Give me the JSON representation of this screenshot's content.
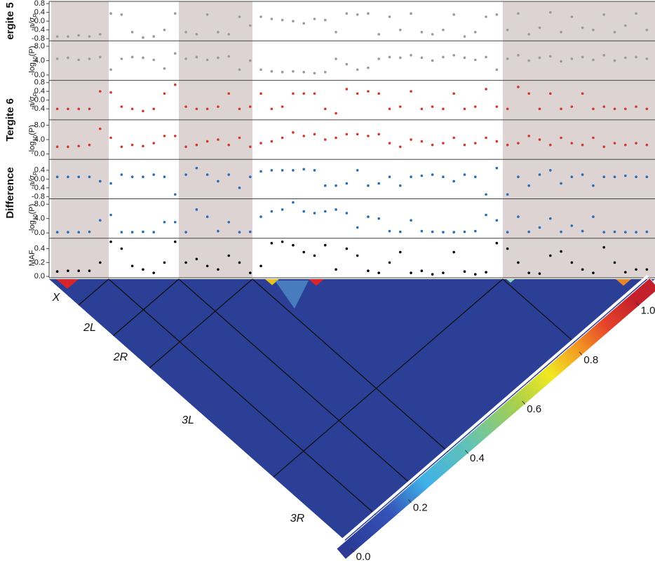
{
  "groups": [
    "ergite 5",
    "Tergite 6",
    "Difference"
  ],
  "chart_data": [
    {
      "type": "scatter",
      "ylabel": [
        "a/σ",
        "P"
      ],
      "color": "#9a9a9a",
      "ylim": [
        -0.9,
        0.9
      ],
      "yticks": [
        -0.8,
        -0.4,
        {
          "value": 0,
          "label": "0.0"
        },
        0.4,
        0.8
      ],
      "values": [
        -0.7,
        -0.7,
        -0.65,
        -0.7,
        -0.6,
        0.35,
        0.3,
        -0.5,
        -0.75,
        -0.7,
        -0.4,
        0.35,
        -0.5,
        -0.6,
        0.3,
        -0.5,
        -0.6,
        0.2,
        -0.2,
        0.2,
        0.1,
        0.05,
        0.0,
        -0.1,
        0.1,
        0.05,
        -0.5,
        0.35,
        0.3,
        0.35,
        -0.6,
        0.2,
        -0.4,
        0.35,
        -0.5,
        -0.6,
        -0.4,
        0.3,
        -0.7,
        -0.5,
        0.2,
        0.3,
        -0.4,
        0.35,
        -0.6,
        -0.3,
        0.4,
        -0.5,
        0.2,
        -0.3,
        -0.4,
        0.3,
        -0.5,
        -0.2,
        0.35,
        -0.4
      ]
    },
    {
      "type": "scatter",
      "ylabel": [
        "-log",
        "10",
        "(P)"
      ],
      "color": "#9a9a9a",
      "ylim": [
        -1.5,
        9.5
      ],
      "yticks": [
        {
          "value": 0,
          "label": "0.0"
        },
        {
          "value": 4,
          "label": "4.0"
        },
        {
          "value": 8,
          "label": "8.0"
        }
      ],
      "values": [
        4.5,
        4.8,
        4.2,
        4.5,
        5.0,
        1.5,
        4.5,
        5.0,
        4.8,
        4.2,
        1.8,
        6.0,
        4.5,
        5.0,
        4.2,
        4.8,
        5.2,
        1.5,
        4.0,
        1.5,
        1.0,
        0.8,
        1.0,
        0.8,
        0.5,
        0.8,
        4.5,
        3.0,
        1.5,
        2.0,
        4.5,
        5.0,
        4.8,
        5.5,
        4.8,
        4.0,
        5.0,
        5.5,
        4.8,
        4.2,
        5.0,
        1.5,
        4.5,
        5.5,
        4.0,
        4.8,
        5.2,
        3.8,
        4.5,
        5.0,
        4.2,
        5.5,
        4.0,
        4.8,
        5.0,
        4.5
      ]
    },
    {
      "type": "scatter",
      "ylabel": [
        "a/σ",
        "P"
      ],
      "color": "#d0392b",
      "ylim": [
        -0.9,
        0.9
      ],
      "yticks": [
        -0.4,
        {
          "value": 0,
          "label": "0.0"
        },
        0.4,
        0.8
      ],
      "values": [
        -0.4,
        -0.4,
        -0.4,
        -0.4,
        0.4,
        0.35,
        -0.3,
        -0.4,
        -0.5,
        -0.4,
        0.3,
        0.7,
        -0.3,
        -0.4,
        -0.4,
        -0.3,
        0.3,
        -0.4,
        -0.3,
        0.3,
        -0.4,
        -0.3,
        0.3,
        0.3,
        0.3,
        -0.4,
        -0.6,
        0.5,
        0.3,
        0.4,
        0.3,
        -0.4,
        -0.3,
        0.4,
        -0.4,
        -0.3,
        -0.4,
        0.3,
        -0.4,
        -0.3,
        0.5,
        -0.3,
        -0.4,
        0.6,
        0.3,
        -0.4,
        0.3,
        -0.4,
        -0.3,
        0.3,
        -0.4,
        -0.3,
        -0.4,
        -0.4,
        -0.3,
        -0.4
      ]
    },
    {
      "type": "scatter",
      "ylabel": [
        "-log",
        "10",
        "(P)"
      ],
      "color": "#d0392b",
      "ylim": [
        -1.5,
        9.5
      ],
      "yticks": [
        {
          "value": 0,
          "label": "0.0"
        },
        {
          "value": 4,
          "label": "4.0"
        },
        {
          "value": 8,
          "label": "8.0"
        }
      ],
      "values": [
        2.0,
        2.0,
        2.2,
        2.5,
        7.0,
        4.5,
        2.0,
        2.5,
        2.2,
        3.0,
        5.0,
        5.0,
        2.0,
        2.5,
        3.5,
        4.0,
        2.5,
        4.5,
        2.0,
        3.0,
        3.5,
        4.5,
        6.0,
        5.0,
        5.5,
        4.0,
        4.5,
        5.5,
        5.5,
        5.0,
        5.5,
        3.0,
        2.0,
        4.0,
        3.5,
        2.5,
        3.0,
        4.5,
        2.5,
        3.0,
        4.5,
        3.5,
        2.5,
        3.0,
        5.0,
        4.0,
        2.5,
        4.5,
        3.0,
        2.5,
        4.5,
        2.0,
        3.0,
        2.5,
        3.0,
        2.5
      ]
    },
    {
      "type": "scatter",
      "ylabel": [
        "a/σ",
        "P"
      ],
      "color": "#2a6db5",
      "ylim": [
        -0.9,
        0.9
      ],
      "yticks": [
        -0.8,
        -0.4,
        {
          "value": 0,
          "label": "0.0"
        },
        0.4
      ],
      "values": [
        0.1,
        0.1,
        0.1,
        0.1,
        -0.1,
        -0.2,
        0.2,
        0.1,
        0.1,
        0.2,
        0.1,
        -0.7,
        0.2,
        0.5,
        0.2,
        -0.1,
        0.2,
        -0.4,
        0.1,
        0.35,
        0.4,
        0.4,
        0.4,
        0.45,
        0.4,
        -0.3,
        -0.3,
        -0.2,
        0.4,
        -0.3,
        -0.2,
        0.1,
        -0.3,
        0.1,
        0.15,
        0.2,
        0.1,
        -0.1,
        0.2,
        0.1,
        -0.7,
        0.5,
        -0.7,
        0.1,
        -0.3,
        0.2,
        0.4,
        -0.2,
        0.1,
        0.2,
        -0.3,
        0.1,
        0.1,
        0.15,
        0.1,
        0.1
      ]
    },
    {
      "type": "scatter",
      "ylabel": [
        "-log",
        "10",
        "(P)"
      ],
      "color": "#2a6db5",
      "ylim": [
        -1.5,
        9.5
      ],
      "yticks": [
        {
          "value": 0,
          "label": "0.0"
        },
        {
          "value": 4,
          "label": "4.0"
        },
        {
          "value": 8,
          "label": "8.0"
        }
      ],
      "values": [
        0.2,
        0.2,
        0.2,
        0.3,
        3.5,
        5.0,
        0.2,
        0.2,
        0.3,
        0.2,
        3.0,
        3.0,
        0.2,
        6.5,
        4.5,
        0.5,
        3.0,
        0.2,
        0.3,
        4.5,
        6.0,
        6.5,
        8.5,
        6.0,
        5.5,
        6.0,
        6.5,
        5.5,
        1.5,
        4.5,
        4.0,
        0.5,
        0.3,
        3.5,
        0.5,
        0.3,
        0.2,
        0.2,
        0.3,
        0.5,
        5.0,
        3.5,
        0.2,
        4.5,
        0.3,
        1.5,
        4.0,
        0.3,
        2.0,
        0.5,
        4.5,
        0.2,
        0.3,
        0.2,
        0.2,
        0.3
      ]
    },
    {
      "type": "scatter",
      "ylabel": [
        "MAF"
      ],
      "color": "#000000",
      "ylim": [
        -0.02,
        0.55
      ],
      "yticks": [
        {
          "value": 0,
          "label": "0.0"
        },
        0.2,
        0.4
      ],
      "values": [
        0.07,
        0.08,
        0.08,
        0.08,
        0.2,
        0.5,
        0.4,
        0.15,
        0.1,
        0.05,
        0.2,
        0.5,
        0.2,
        0.25,
        0.15,
        0.1,
        0.3,
        0.2,
        0.05,
        0.15,
        0.48,
        0.5,
        0.45,
        0.35,
        0.3,
        0.45,
        0.1,
        0.4,
        0.3,
        0.08,
        0.05,
        0.2,
        0.35,
        0.05,
        0.08,
        0.03,
        0.05,
        0.35,
        0.07,
        0.03,
        0.06,
        0.48,
        0.4,
        0.2,
        0.05,
        0.04,
        0.3,
        0.36,
        0.2,
        0.1,
        0.05,
        0.42,
        0.2,
        0.06,
        0.1,
        0.1
      ]
    },
    {
      "type": "heatmap",
      "chromosomes": [
        "X",
        "2L",
        "2R",
        "3L",
        "3R"
      ],
      "clim": [
        0,
        1
      ],
      "cticks": [
        {
          "value": 0,
          "label": "0.0"
        },
        0.2,
        0.4,
        0.6,
        0.8,
        {
          "value": 1,
          "label": "1.0"
        }
      ]
    }
  ]
}
